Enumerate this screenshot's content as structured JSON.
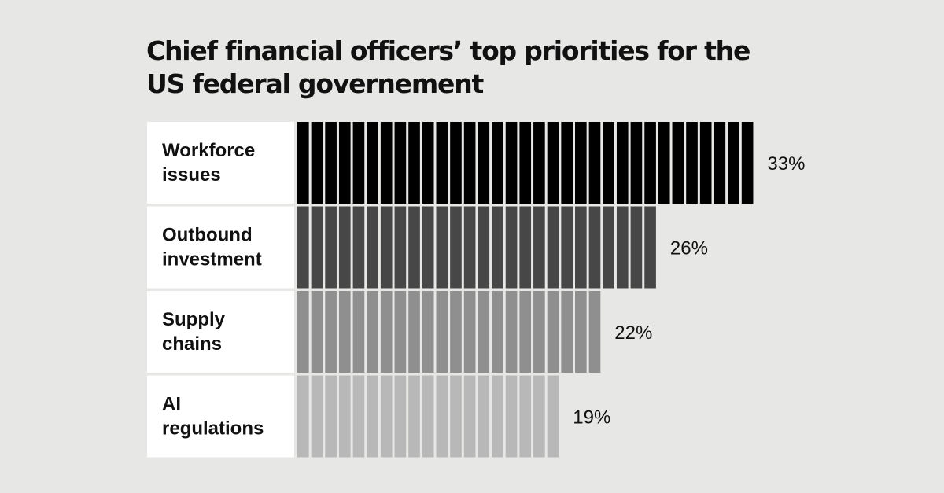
{
  "chart_data": {
    "type": "bar",
    "orientation": "horizontal",
    "title_lines": [
      "Chief financial officers’ top priorities for the",
      "US federal governement"
    ],
    "categories": [
      [
        "Workforce",
        "issues"
      ],
      [
        "Outbound",
        "investment"
      ],
      [
        "Supply",
        "chains"
      ],
      [
        "AI",
        "regulations"
      ]
    ],
    "values": [
      33,
      26,
      22,
      19
    ],
    "value_labels": [
      "33%",
      "26%",
      "22%",
      "19%"
    ],
    "unit": "%",
    "colors": [
      "#000000",
      "#474747",
      "#8f8f8f",
      "#b8b8b8"
    ],
    "grid": false,
    "legend": "none"
  }
}
